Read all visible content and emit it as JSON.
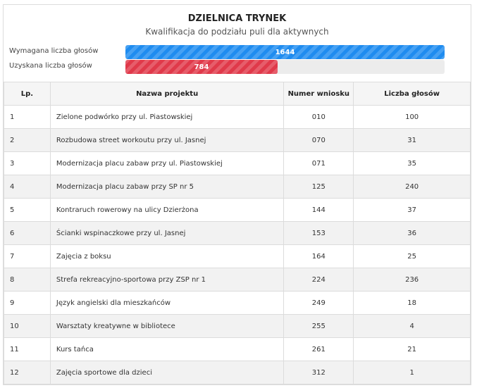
{
  "header": {
    "title": "DZIELNICA TRYNEK",
    "subtitle": "Kwalifikacja do podziału puli dla aktywnych"
  },
  "progress": {
    "required_label": "Wymagana liczba głosów",
    "required_value": "1644",
    "obtained_label": "Uzyskana liczba głosów",
    "obtained_value": "784",
    "obtained_fraction": 0.477,
    "colors": {
      "required": "#1f8cf0",
      "obtained": "#e0394a"
    }
  },
  "table": {
    "columns": [
      "Lp.",
      "Nazwa projektu",
      "Numer wniosku",
      "Liczba głosów"
    ],
    "rows": [
      {
        "lp": "1",
        "name": "Zielone podwórko przy ul. Piastowskiej",
        "num": "010",
        "votes": "100"
      },
      {
        "lp": "2",
        "name": "Rozbudowa street workoutu przy ul. Jasnej",
        "num": "070",
        "votes": "31"
      },
      {
        "lp": "3",
        "name": "Modernizacja placu zabaw przy ul. Piastowskiej",
        "num": "071",
        "votes": "35"
      },
      {
        "lp": "4",
        "name": "Modernizacja placu zabaw przy SP nr 5",
        "num": "125",
        "votes": "240"
      },
      {
        "lp": "5",
        "name": "Kontraruch rowerowy na ulicy Dzierżona",
        "num": "144",
        "votes": "37"
      },
      {
        "lp": "6",
        "name": "Ścianki wspinaczkowe przy ul. Jasnej",
        "num": "153",
        "votes": "36"
      },
      {
        "lp": "7",
        "name": "Zajęcia z boksu",
        "num": "164",
        "votes": "25"
      },
      {
        "lp": "8",
        "name": "Strefa rekreacyjno-sportowa przy ZSP nr 1",
        "num": "224",
        "votes": "236"
      },
      {
        "lp": "9",
        "name": "Język angielski dla mieszkańców",
        "num": "249",
        "votes": "18"
      },
      {
        "lp": "10",
        "name": "Warsztaty kreatywne w bibliotece",
        "num": "255",
        "votes": "4"
      },
      {
        "lp": "11",
        "name": "Kurs tańca",
        "num": "261",
        "votes": "21"
      },
      {
        "lp": "12",
        "name": "Zajęcia sportowe dla dzieci",
        "num": "312",
        "votes": "1"
      }
    ]
  }
}
